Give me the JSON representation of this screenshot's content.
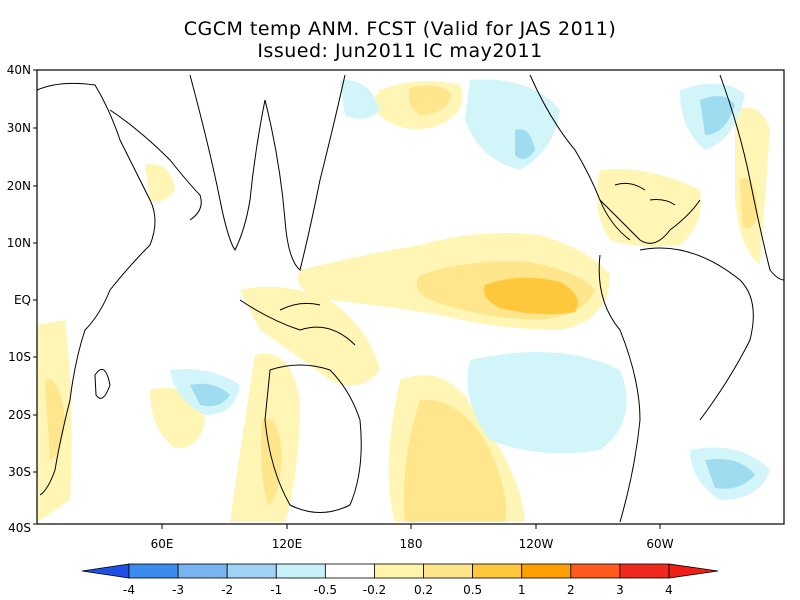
{
  "title": {
    "line1": "CGCM temp ANM. FCST  (Valid for JAS 2011)",
    "line2": "Issued:  Jun2011 IC may2011"
  },
  "axes": {
    "lat_labels": [
      "40N",
      "30N",
      "20N",
      "10N",
      "EQ",
      "10S",
      "20S",
      "30S",
      "40S"
    ],
    "lon_labels": [
      "60E",
      "120E",
      "180",
      "120W",
      "60W"
    ]
  },
  "colorbar": {
    "labels": [
      "-4",
      "-3",
      "-2",
      "-1",
      "-0.5",
      "-0.2",
      "0.2",
      "0.5",
      "1",
      "2",
      "3",
      "4"
    ],
    "colors": [
      "#1e6fe8",
      "#3c8cf0",
      "#78b4f0",
      "#a0d2f5",
      "#c8f0f8",
      "#ffffff",
      "#fff5aa",
      "#ffe68c",
      "#ffc83c",
      "#ffa000",
      "#ff5a1e",
      "#f0281e"
    ],
    "end_colors": [
      "#1e50e6",
      "#f01e14"
    ]
  },
  "shading_colors": {
    "light_yellow": "#fff5b4",
    "yellow": "#ffe68c",
    "gold": "#ffc83c",
    "light_blue": "#d2f5fa",
    "blue": "#a0dcf0"
  }
}
